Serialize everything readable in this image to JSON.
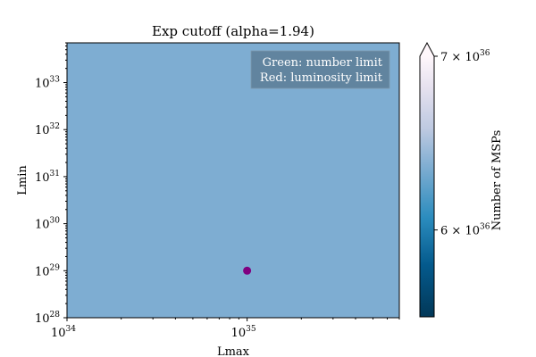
{
  "chart_data": {
    "type": "scatter",
    "title": "Exp cutoff (alpha=1.94)",
    "xlabel": "Lmax",
    "ylabel": "Lmin",
    "x_scale": "log",
    "y_scale": "log",
    "xlim": [
      1e+34,
      7e+35
    ],
    "ylim": [
      1e+28,
      7e+33
    ],
    "x_ticks": [
      {
        "value": 1e+34,
        "base": "10",
        "exp": "34"
      },
      {
        "value": 1e+35,
        "base": "10",
        "exp": "35"
      }
    ],
    "y_ticks": [
      {
        "value": 1e+28,
        "base": "10",
        "exp": "28"
      },
      {
        "value": 1e+29,
        "base": "10",
        "exp": "29"
      },
      {
        "value": 1e+30,
        "base": "10",
        "exp": "30"
      },
      {
        "value": 1e+31,
        "base": "10",
        "exp": "31"
      },
      {
        "value": 1e+32,
        "base": "10",
        "exp": "32"
      },
      {
        "value": 1e+33,
        "base": "10",
        "exp": "33"
      }
    ],
    "points": [
      {
        "x": 1e+35,
        "y": 1e+29,
        "color": "#800080"
      }
    ],
    "background_field_color": "#7eadd2",
    "annotation": [
      "Green: number limit",
      "Red: luminosity limit"
    ],
    "annotation_box_color": "#5c7d96",
    "colorbar": {
      "label": "Number of MSPs",
      "colormap": "PuBu_r",
      "range": [
        5.5e+36,
        7e+36
      ],
      "extend": "max",
      "ticks": [
        {
          "value": 6e+36,
          "mantissa": "6",
          "base": "10",
          "exp": "36"
        },
        {
          "value": 7e+36,
          "mantissa": "7",
          "base": "10",
          "exp": "36"
        }
      ]
    }
  }
}
